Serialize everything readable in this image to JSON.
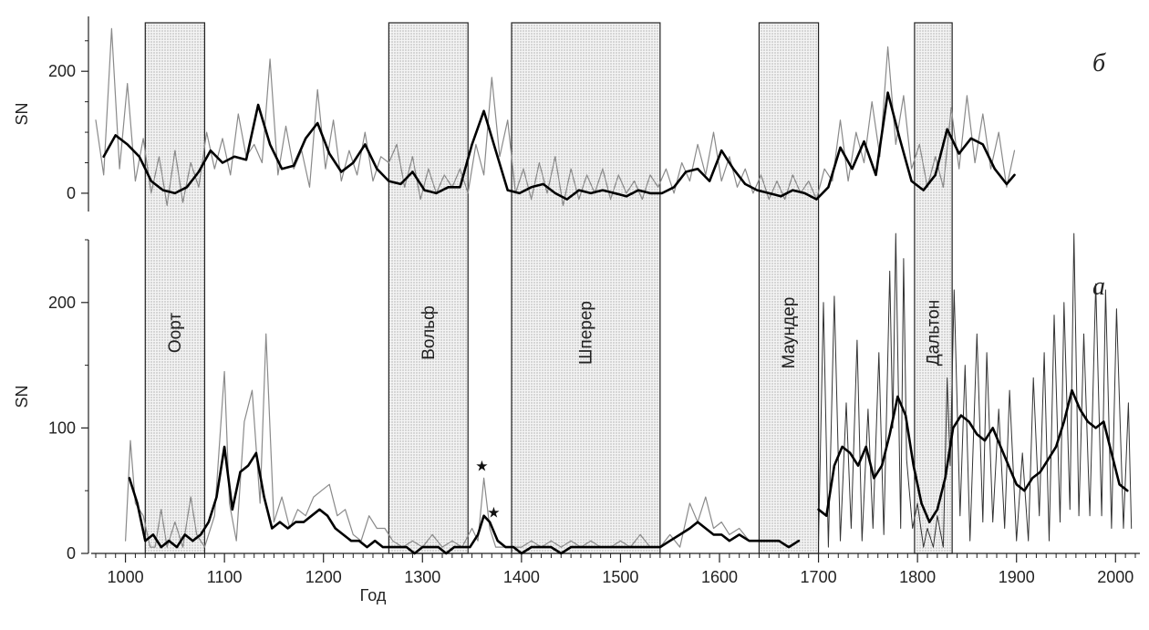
{
  "chart_data": {
    "type": "line",
    "xlabel": "Год",
    "xlim": [
      970,
      2020
    ],
    "xticks": [
      1000,
      1100,
      1200,
      1300,
      1400,
      1500,
      1600,
      1700,
      1800,
      1900,
      2000
    ],
    "grand_minima": [
      {
        "label": "Оорт",
        "start": 1020,
        "end": 1080
      },
      {
        "label": "Вольф",
        "start": 1266,
        "end": 1346
      },
      {
        "label": "Шперер",
        "start": 1390,
        "end": 1540
      },
      {
        "label": "Маундер",
        "start": 1640,
        "end": 1700
      },
      {
        "label": "Дальтон",
        "start": 1797,
        "end": 1835
      }
    ],
    "panels": [
      {
        "id": "b",
        "panel_label": "б",
        "ylabel": "SN",
        "ylim": [
          -30,
          290
        ],
        "yticks": [
          0,
          200
        ],
        "series": [
          {
            "style": "thin",
            "x": [
              970,
              978,
              986,
              994,
              1002,
              1010,
              1018,
              1026,
              1034,
              1042,
              1050,
              1058,
              1066,
              1074,
              1082,
              1090,
              1098,
              1106,
              1114,
              1122,
              1130,
              1138,
              1146,
              1154,
              1162,
              1170,
              1178,
              1186,
              1194,
              1202,
              1210,
              1218,
              1226,
              1234,
              1242,
              1250,
              1258,
              1266,
              1274,
              1282,
              1290,
              1298,
              1306,
              1314,
              1322,
              1330,
              1338,
              1346,
              1354,
              1362,
              1370,
              1378,
              1386,
              1394,
              1402,
              1410,
              1418,
              1426,
              1434,
              1442,
              1450,
              1458,
              1466,
              1474,
              1482,
              1490,
              1498,
              1506,
              1514,
              1522,
              1530,
              1538,
              1546,
              1554,
              1562,
              1570,
              1578,
              1586,
              1594,
              1602,
              1610,
              1618,
              1626,
              1634,
              1642,
              1650,
              1658,
              1666,
              1674,
              1682,
              1690,
              1698,
              1706,
              1714,
              1722,
              1730,
              1738,
              1746,
              1754,
              1762,
              1770,
              1778,
              1786,
              1794,
              1802,
              1810,
              1818,
              1826,
              1834,
              1842,
              1850,
              1858,
              1866,
              1874,
              1882,
              1890,
              1898
            ],
            "y": [
              120,
              30,
              270,
              40,
              180,
              20,
              90,
              0,
              60,
              -20,
              70,
              -15,
              50,
              10,
              100,
              40,
              90,
              30,
              130,
              60,
              80,
              50,
              220,
              30,
              110,
              40,
              70,
              10,
              170,
              40,
              120,
              20,
              70,
              30,
              100,
              20,
              60,
              50,
              80,
              10,
              60,
              -10,
              40,
              0,
              30,
              10,
              40,
              0,
              80,
              30,
              190,
              60,
              120,
              0,
              40,
              -10,
              50,
              0,
              60,
              -20,
              40,
              -10,
              30,
              0,
              40,
              -10,
              30,
              0,
              20,
              -10,
              30,
              10,
              40,
              0,
              50,
              20,
              80,
              30,
              100,
              20,
              60,
              10,
              40,
              0,
              30,
              -10,
              20,
              -10,
              30,
              0,
              20,
              -10,
              40,
              20,
              120,
              20,
              100,
              50,
              150,
              60,
              240,
              80,
              160,
              40,
              80,
              10,
              60,
              10,
              140,
              40,
              160,
              50,
              130,
              40,
              100,
              10,
              70
            ]
          },
          {
            "style": "thick",
            "x": [
              978,
              990,
              1002,
              1014,
              1026,
              1038,
              1050,
              1062,
              1074,
              1086,
              1098,
              1110,
              1122,
              1134,
              1146,
              1158,
              1170,
              1182,
              1194,
              1206,
              1218,
              1230,
              1242,
              1254,
              1266,
              1278,
              1290,
              1302,
              1314,
              1326,
              1338,
              1350,
              1362,
              1374,
              1386,
              1398,
              1410,
              1422,
              1434,
              1446,
              1458,
              1470,
              1482,
              1494,
              1506,
              1518,
              1530,
              1542,
              1554,
              1566,
              1578,
              1590,
              1602,
              1614,
              1626,
              1638,
              1650,
              1662,
              1674,
              1686,
              1698,
              1710,
              1722,
              1734,
              1746,
              1758,
              1770,
              1782,
              1794,
              1806,
              1818,
              1830,
              1842,
              1854,
              1866,
              1878,
              1890,
              1898
            ],
            "y": [
              60,
              95,
              80,
              60,
              20,
              5,
              0,
              10,
              35,
              70,
              50,
              60,
              55,
              145,
              80,
              40,
              45,
              90,
              115,
              65,
              35,
              50,
              80,
              40,
              20,
              15,
              35,
              5,
              0,
              10,
              10,
              80,
              135,
              70,
              5,
              0,
              10,
              15,
              0,
              -10,
              5,
              0,
              5,
              0,
              -5,
              5,
              0,
              0,
              10,
              35,
              40,
              20,
              70,
              40,
              15,
              5,
              0,
              -5,
              5,
              0,
              -10,
              10,
              75,
              40,
              85,
              30,
              165,
              90,
              20,
              5,
              30,
              105,
              65,
              90,
              80,
              40,
              15,
              30
            ]
          }
        ]
      },
      {
        "id": "a",
        "panel_label": "а",
        "ylabel": "SN",
        "ylim": [
          0,
          250
        ],
        "yticks": [
          0,
          100,
          200
        ],
        "series": [
          {
            "style": "thin",
            "x": [
              1000,
              1005,
              1010,
              1018,
              1025,
              1030,
              1036,
              1042,
              1050,
              1058,
              1066,
              1072,
              1080,
              1090,
              1100,
              1105,
              1112,
              1120,
              1128,
              1136,
              1142,
              1150,
              1158,
              1166,
              1174,
              1182,
              1190,
              1198,
              1206,
              1214,
              1222,
              1230,
              1238,
              1246,
              1254,
              1262,
              1270,
              1280,
              1290,
              1300,
              1310,
              1320,
              1330,
              1340,
              1350,
              1356,
              1362,
              1368,
              1374,
              1382,
              1390,
              1400,
              1410,
              1420,
              1430,
              1440,
              1450,
              1460,
              1470,
              1480,
              1490,
              1500,
              1510,
              1520,
              1530,
              1540,
              1550,
              1560,
              1570,
              1578,
              1586,
              1594,
              1602,
              1610,
              1620,
              1630,
              1640,
              1650,
              1660,
              1670,
              1680
            ],
            "y": [
              10,
              90,
              40,
              30,
              5,
              5,
              35,
              5,
              25,
              5,
              45,
              15,
              5,
              30,
              145,
              40,
              10,
              105,
              130,
              40,
              175,
              25,
              45,
              20,
              35,
              30,
              45,
              50,
              55,
              30,
              35,
              15,
              10,
              30,
              20,
              20,
              10,
              5,
              10,
              5,
              15,
              5,
              10,
              5,
              20,
              10,
              60,
              20,
              5,
              5,
              5,
              5,
              10,
              5,
              10,
              5,
              10,
              5,
              10,
              5,
              5,
              10,
              5,
              15,
              5,
              5,
              15,
              5,
              40,
              25,
              45,
              20,
              25,
              15,
              20,
              10,
              10,
              10,
              10,
              5,
              10
            ]
          },
          {
            "style": "thick",
            "x": [
              1004,
              1012,
              1020,
              1028,
              1036,
              1044,
              1052,
              1060,
              1068,
              1076,
              1084,
              1092,
              1100,
              1108,
              1116,
              1124,
              1132,
              1140,
              1148,
              1156,
              1164,
              1172,
              1180,
              1188,
              1196,
              1204,
              1212,
              1220,
              1228,
              1236,
              1244,
              1252,
              1260,
              1268,
              1276,
              1284,
              1292,
              1300,
              1308,
              1316,
              1324,
              1332,
              1340,
              1348,
              1356,
              1362,
              1368,
              1376,
              1384,
              1392,
              1400,
              1410,
              1420,
              1430,
              1440,
              1450,
              1460,
              1470,
              1480,
              1490,
              1500,
              1510,
              1520,
              1530,
              1540,
              1550,
              1560,
              1570,
              1578,
              1586,
              1594,
              1602,
              1610,
              1620,
              1630,
              1640,
              1650,
              1660,
              1670,
              1680
            ],
            "y": [
              60,
              40,
              10,
              15,
              5,
              10,
              5,
              15,
              10,
              15,
              25,
              45,
              85,
              35,
              65,
              70,
              80,
              45,
              20,
              25,
              20,
              25,
              25,
              30,
              35,
              30,
              20,
              15,
              10,
              10,
              5,
              10,
              5,
              5,
              5,
              5,
              0,
              5,
              5,
              5,
              0,
              5,
              5,
              5,
              15,
              30,
              25,
              10,
              5,
              5,
              0,
              5,
              5,
              5,
              0,
              5,
              5,
              5,
              5,
              5,
              5,
              5,
              5,
              5,
              5,
              10,
              15,
              20,
              25,
              20,
              15,
              15,
              10,
              15,
              10,
              10,
              10,
              10,
              5,
              10
            ]
          },
          {
            "style": "monthly",
            "x": [
              1700,
              1705,
              1710,
              1716,
              1722,
              1728,
              1733,
              1739,
              1744,
              1750,
              1755,
              1761,
              1766,
              1772,
              1775,
              1778,
              1783,
              1786,
              1789,
              1795,
              1800,
              1806,
              1810,
              1816,
              1820,
              1826,
              1830,
              1833,
              1837,
              1843,
              1848,
              1853,
              1860,
              1866,
              1870,
              1876,
              1882,
              1888,
              1893,
              1900,
              1906,
              1912,
              1917,
              1923,
              1928,
              1933,
              1938,
              1944,
              1948,
              1954,
              1958,
              1963,
              1968,
              1974,
              1980,
              1986,
              1990,
              1996,
              2001,
              2008,
              2013,
              2016
            ],
            "y": [
              10,
              200,
              5,
              205,
              10,
              120,
              20,
              170,
              10,
              115,
              20,
              160,
              15,
              225,
              100,
              255,
              20,
              235,
              75,
              20,
              40,
              5,
              20,
              5,
              30,
              5,
              140,
              70,
              210,
              30,
              150,
              10,
              175,
              25,
              160,
              25,
              115,
              20,
              130,
              10,
              80,
              10,
              140,
              30,
              160,
              10,
              190,
              25,
              200,
              35,
              255,
              30,
              175,
              30,
              215,
              30,
              210,
              20,
              195,
              20,
              120,
              20
            ]
          },
          {
            "style": "thick-modern",
            "x": [
              1700,
              1708,
              1716,
              1724,
              1732,
              1740,
              1748,
              1756,
              1764,
              1772,
              1780,
              1788,
              1796,
              1804,
              1812,
              1820,
              1828,
              1836,
              1844,
              1852,
              1860,
              1868,
              1876,
              1884,
              1892,
              1900,
              1908,
              1916,
              1924,
              1932,
              1940,
              1948,
              1956,
              1964,
              1972,
              1980,
              1988,
              1996,
              2004,
              2012
            ],
            "y": [
              35,
              30,
              70,
              85,
              80,
              70,
              85,
              60,
              70,
              95,
              125,
              110,
              70,
              40,
              25,
              35,
              60,
              100,
              110,
              105,
              95,
              90,
              100,
              85,
              70,
              55,
              50,
              60,
              65,
              75,
              85,
              105,
              130,
              115,
              105,
              100,
              105,
              80,
              55,
              50
            ]
          }
        ],
        "annotations": [
          {
            "text": "★",
            "x": 1360,
            "y": 70
          },
          {
            "text": "★",
            "x": 1372,
            "y": 33
          }
        ]
      }
    ]
  }
}
